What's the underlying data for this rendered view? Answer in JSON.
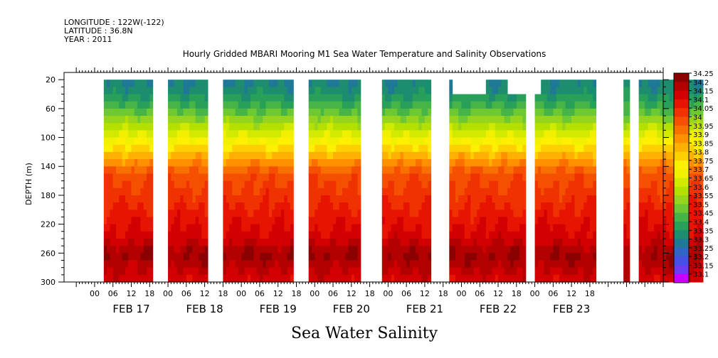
{
  "header": {
    "longitude": "LONGITUDE : 122W(-122)",
    "latitude": "LATITUDE : 36.8N",
    "year": "YEAR : 2011"
  },
  "title": "Hourly Gridded MBARI Mooring M1 Sea Water Temperature and Salinity Observations",
  "bottom_title": "Sea Water Salinity",
  "chart_data": {
    "type": "heatmap",
    "title": "Hourly Gridded MBARI Mooring M1 Sea Water Temperature and Salinity Observations",
    "ylabel": "DEPTH (m)",
    "xlabel": "",
    "ylim": [
      300,
      10
    ],
    "y_ticks": [
      20,
      60,
      100,
      140,
      180,
      220,
      260,
      300
    ],
    "x_hour_ticks": [
      "00",
      "06",
      "12",
      "18",
      "00",
      "06",
      "12",
      "18",
      "00",
      "06",
      "12",
      "18",
      "00",
      "06",
      "12",
      "18",
      "00",
      "06",
      "12",
      "18",
      "00",
      "06",
      "12",
      "18",
      "00",
      "06",
      "12",
      "18"
    ],
    "x_days": [
      "FEB 17",
      "FEB 18",
      "FEB 19",
      "FEB 20",
      "FEB 21",
      "FEB 22",
      "FEB 23"
    ],
    "x_range_hours": [
      -10,
      186
    ],
    "colorbar": {
      "labels": [
        "34.25",
        "34.2",
        "34.15",
        "34.1",
        "34.05",
        "34",
        "33.95",
        "33.9",
        "33.85",
        "33.8",
        "33.75",
        "33.7",
        "33.65",
        "33.6",
        "33.55",
        "33.5",
        "33.45",
        "33.4",
        "33.35",
        "33.3",
        "33.25",
        "33.2",
        "33.15",
        "33.1"
      ],
      "colors": [
        "#8b0000",
        "#b30000",
        "#d20000",
        "#e61400",
        "#f03200",
        "#f55000",
        "#fa7000",
        "#ff9000",
        "#ffb000",
        "#ffd000",
        "#ffef00",
        "#f0f000",
        "#d2ea00",
        "#b4e000",
        "#96d41e",
        "#6ec832",
        "#46b446",
        "#28a05a",
        "#1e8c6e",
        "#1e7896",
        "#3264c8",
        "#4650e6",
        "#6e3cf0",
        "#cc00ff"
      ]
    },
    "data_segments_hours": [
      [
        3,
        19
      ],
      [
        24,
        37
      ],
      [
        42,
        65
      ],
      [
        70,
        87
      ],
      [
        94,
        110
      ],
      [
        116,
        141
      ],
      [
        144,
        164
      ],
      [
        173,
        175
      ],
      [
        178,
        199
      ]
    ],
    "top_depth_segments": [
      {
        "range_hours": [
          117,
          141
        ],
        "top_m": 40
      },
      {
        "range_hours": [
          128,
          135
        ],
        "top_m": 20
      },
      {
        "range_hours": [
          144,
          146
        ],
        "top_m": 40
      }
    ]
  }
}
